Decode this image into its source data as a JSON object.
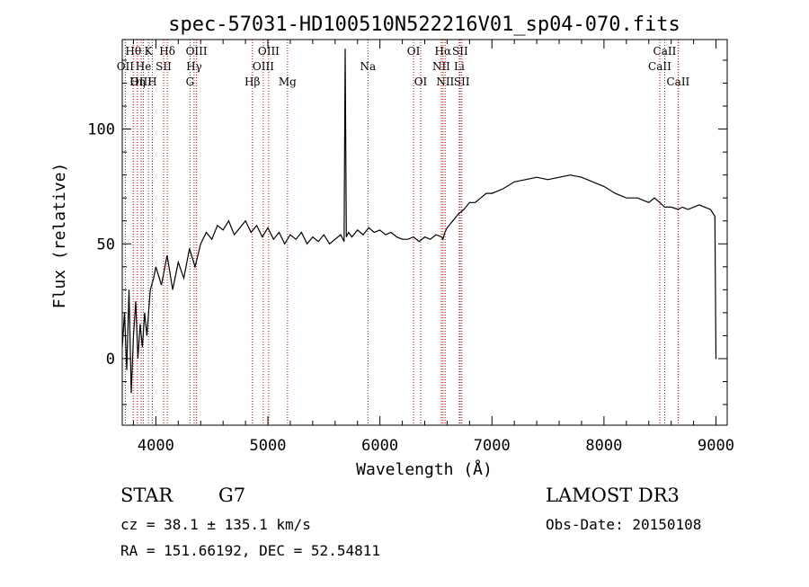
{
  "chart_data": {
    "type": "line",
    "title": "spec-57031-HD100510N522216V01_sp04-070.fits",
    "xlabel": "Wavelength (Å)",
    "ylabel": "Flux (relative)",
    "xlim": [
      3700,
      9100
    ],
    "ylim": [
      -29,
      139
    ],
    "x_ticks": [
      4000,
      5000,
      6000,
      7000,
      8000,
      9000
    ],
    "y_ticks": [
      0,
      50,
      100
    ],
    "grid": false,
    "line_color": "#000000",
    "marker_color": "#cc0000",
    "series": [
      {
        "x": [
          3700,
          3720,
          3740,
          3760,
          3780,
          3800,
          3820,
          3840,
          3860,
          3880,
          3900,
          3920,
          3950,
          3980,
          4000,
          4050,
          4100,
          4150,
          4200,
          4250,
          4300,
          4350,
          4400,
          4450,
          4500,
          4550,
          4600,
          4650,
          4700,
          4750,
          4800,
          4850,
          4900,
          4950,
          5000,
          5050,
          5100,
          5150,
          5200,
          5250,
          5300,
          5350,
          5400,
          5450,
          5500,
          5550,
          5600,
          5650,
          5680,
          5690,
          5700,
          5720,
          5750,
          5800,
          5850,
          5900,
          5950,
          6000,
          6050,
          6100,
          6150,
          6200,
          6250,
          6300,
          6350,
          6400,
          6450,
          6500,
          6550,
          6562,
          6580,
          6600,
          6650,
          6700,
          6750,
          6800,
          6850,
          6900,
          6950,
          7000,
          7100,
          7200,
          7300,
          7400,
          7500,
          7600,
          7700,
          7800,
          7900,
          8000,
          8100,
          8200,
          8300,
          8400,
          8450,
          8498,
          8542,
          8600,
          8662,
          8700,
          8750,
          8800,
          8850,
          8900,
          8950,
          8990,
          8995,
          9000,
          9005
        ],
        "y": [
          5,
          20,
          -5,
          30,
          -15,
          10,
          25,
          0,
          15,
          5,
          20,
          10,
          30,
          35,
          40,
          32,
          45,
          30,
          42,
          35,
          48,
          40,
          50,
          55,
          52,
          58,
          56,
          60,
          54,
          57,
          60,
          55,
          58,
          53,
          57,
          52,
          55,
          50,
          54,
          52,
          55,
          50,
          53,
          51,
          54,
          50,
          52,
          54,
          51,
          135,
          53,
          55,
          53,
          56,
          54,
          57,
          55,
          56,
          54,
          55,
          53,
          52,
          52,
          53,
          51,
          53,
          52,
          54,
          53,
          52,
          55,
          57,
          60,
          63,
          65,
          68,
          68,
          70,
          72,
          72,
          74,
          77,
          78,
          79,
          78,
          79,
          80,
          79,
          77,
          75,
          72,
          70,
          70,
          68,
          70,
          68,
          66,
          66,
          65,
          66,
          65,
          66,
          67,
          66,
          65,
          62,
          30,
          0,
          0
        ]
      }
    ],
    "lines": [
      {
        "name": "Hθ",
        "wl": 3798
      },
      {
        "name": "OII",
        "wl": 3727
      },
      {
        "name": "OIII",
        "wl": 3869
      },
      {
        "name": "Hη",
        "wl": 3835
      },
      {
        "name": "He",
        "wl": 3889
      },
      {
        "name": "K",
        "wl": 3934
      },
      {
        "name": "H",
        "wl": 3968
      },
      {
        "name": "SII",
        "wl": 4069
      },
      {
        "name": "Hδ",
        "wl": 4102
      },
      {
        "name": "OIII",
        "wl": 4363
      },
      {
        "name": "Hγ",
        "wl": 4341
      },
      {
        "name": "G",
        "wl": 4305
      },
      {
        "name": "Hβ",
        "wl": 4861
      },
      {
        "name": "OIII",
        "wl": 4959
      },
      {
        "name": "OIII",
        "wl": 5007
      },
      {
        "name": "Mg",
        "wl": 5175
      },
      {
        "name": "Na",
        "wl": 5893
      },
      {
        "name": "OI",
        "wl": 6300
      },
      {
        "name": "OI",
        "wl": 6364
      },
      {
        "name": "Hα",
        "wl": 6563
      },
      {
        "name": "NII",
        "wl": 6548
      },
      {
        "name": "NII",
        "wl": 6583
      },
      {
        "name": "SII",
        "wl": 6716
      },
      {
        "name": "SII",
        "wl": 6731
      },
      {
        "name": "Li",
        "wl": 6708
      },
      {
        "name": "CaII",
        "wl": 8498
      },
      {
        "name": "CaII",
        "wl": 8542
      },
      {
        "name": "CaII",
        "wl": 8662
      }
    ]
  },
  "labels": [
    {
      "text": "Hθ",
      "wl": 3798,
      "row": 0
    },
    {
      "text": "K",
      "wl": 3934,
      "row": 0
    },
    {
      "text": "Hδ",
      "wl": 4102,
      "row": 0
    },
    {
      "text": "OIII",
      "wl": 4363,
      "row": 0
    },
    {
      "text": "OIII",
      "wl": 5007,
      "row": 0
    },
    {
      "text": "OI",
      "wl": 6300,
      "row": 0
    },
    {
      "text": "Hα",
      "wl": 6563,
      "row": 0
    },
    {
      "text": "SII",
      "wl": 6716,
      "row": 0
    },
    {
      "text": "CaII",
      "wl": 8542,
      "row": 0
    },
    {
      "text": "OII",
      "wl": 3727,
      "row": 1
    },
    {
      "text": "He",
      "wl": 3889,
      "row": 1
    },
    {
      "text": "SII",
      "wl": 4069,
      "row": 1
    },
    {
      "text": "Hγ",
      "wl": 4341,
      "row": 1
    },
    {
      "text": "OIII",
      "wl": 4959,
      "row": 1
    },
    {
      "text": "Na",
      "wl": 5893,
      "row": 1
    },
    {
      "text": "NII",
      "wl": 6548,
      "row": 1
    },
    {
      "text": "Li",
      "wl": 6708,
      "row": 1
    },
    {
      "text": "CaII",
      "wl": 8498,
      "row": 1
    },
    {
      "text": "OIII",
      "wl": 3869,
      "row": 2
    },
    {
      "text": "Hη",
      "wl": 3835,
      "row": 2
    },
    {
      "text": "H",
      "wl": 3968,
      "row": 2
    },
    {
      "text": "G",
      "wl": 4305,
      "row": 2
    },
    {
      "text": "Hβ",
      "wl": 4861,
      "row": 2
    },
    {
      "text": "Mg",
      "wl": 5175,
      "row": 2
    },
    {
      "text": "OI",
      "wl": 6364,
      "row": 2
    },
    {
      "text": "NII",
      "wl": 6583,
      "row": 2
    },
    {
      "text": "SII",
      "wl": 6731,
      "row": 2
    },
    {
      "text": "CaII",
      "wl": 8662,
      "row": 2
    }
  ],
  "footer": {
    "object_class": "STAR",
    "subclass": "G7",
    "cz": "cz = 38.1 ± 135.1 km/s",
    "radec": "RA = 151.66192, DEC =  52.54811",
    "survey": "LAMOST DR3",
    "obs_date": "Obs-Date: 20150108"
  }
}
